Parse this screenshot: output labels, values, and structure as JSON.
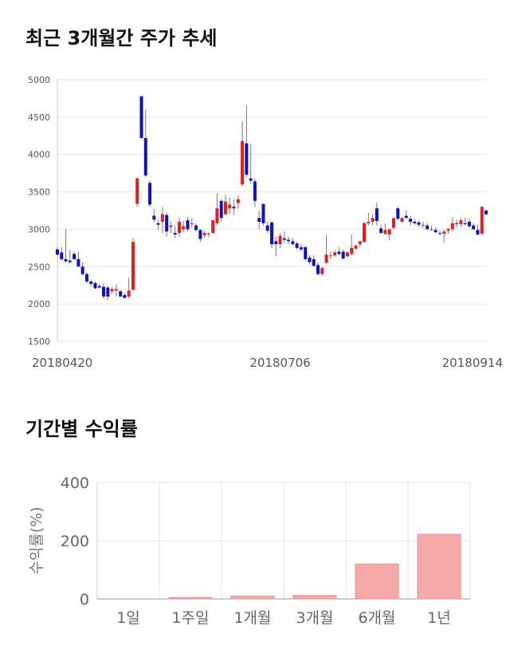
{
  "sections": {
    "price_title": "최근 3개월간 주가 추세",
    "returns_title": "기간별 수익률"
  },
  "colors": {
    "up": "#e02020",
    "down": "#1010c8",
    "wick": "#777777",
    "bar": "#f7a9a9",
    "bar_stroke": "#e89090"
  },
  "chart_data": [
    {
      "type": "candlestick",
      "title": "최근 3개월간 주가 추세",
      "ylim": [
        1500,
        5000
      ],
      "yticks": [
        1500,
        2000,
        2500,
        3000,
        3500,
        4000,
        4500,
        5000
      ],
      "xticks": [
        {
          "index": 0,
          "label": "20180420"
        },
        {
          "index": 53,
          "label": "20180706"
        },
        {
          "index": 109,
          "label": "20180914"
        }
      ],
      "candles": [
        [
          2730,
          2760,
          2650,
          2660
        ],
        [
          2690,
          2760,
          2580,
          2600
        ],
        [
          2600,
          3000,
          2560,
          2570
        ],
        [
          2580,
          2720,
          2540,
          2560
        ],
        [
          2670,
          2700,
          2600,
          2600
        ],
        [
          2600,
          2700,
          2500,
          2500
        ],
        [
          2500,
          2560,
          2380,
          2400
        ],
        [
          2400,
          2420,
          2280,
          2300
        ],
        [
          2300,
          2330,
          2240,
          2270
        ],
        [
          2280,
          2300,
          2200,
          2210
        ],
        [
          2240,
          2270,
          2210,
          2220
        ],
        [
          2230,
          2270,
          2070,
          2100
        ],
        [
          2220,
          2240,
          2050,
          2100
        ],
        [
          2170,
          2230,
          2130,
          2200
        ],
        [
          2180,
          2260,
          2100,
          2200
        ],
        [
          2170,
          2190,
          2100,
          2100
        ],
        [
          2120,
          2140,
          2080,
          2080
        ],
        [
          2100,
          2350,
          2070,
          2180
        ],
        [
          2190,
          2880,
          2180,
          2830
        ],
        [
          3340,
          3690,
          3300,
          3680
        ],
        [
          4780,
          4780,
          4220,
          4220
        ],
        [
          4220,
          4600,
          3700,
          3720
        ],
        [
          3620,
          3650,
          3300,
          3330
        ],
        [
          3180,
          3270,
          3100,
          3130
        ],
        [
          3080,
          3130,
          2990,
          3060
        ],
        [
          3100,
          3300,
          2950,
          3200
        ],
        [
          3190,
          3220,
          2900,
          2970
        ],
        [
          3030,
          3100,
          2950,
          3050
        ],
        [
          2950,
          3050,
          2880,
          2930
        ],
        [
          2950,
          3150,
          2900,
          3100
        ],
        [
          3000,
          3110,
          2960,
          3040
        ],
        [
          3120,
          3160,
          2970,
          3000
        ],
        [
          3070,
          3150,
          3020,
          3080
        ],
        [
          3050,
          3080,
          2970,
          2990
        ],
        [
          2990,
          3000,
          2830,
          2870
        ],
        [
          2920,
          2980,
          2880,
          2950
        ],
        [
          2930,
          2960,
          2890,
          2940
        ],
        [
          2950,
          3120,
          2940,
          3120
        ],
        [
          3080,
          3480,
          3050,
          3280
        ],
        [
          3380,
          3400,
          3100,
          3150
        ],
        [
          3200,
          3460,
          3180,
          3370
        ],
        [
          3280,
          3420,
          3200,
          3330
        ],
        [
          3300,
          3400,
          3200,
          3280
        ],
        [
          3350,
          3450,
          3280,
          3400
        ],
        [
          3600,
          4450,
          3580,
          4180
        ],
        [
          4150,
          4660,
          3700,
          3730
        ],
        [
          3680,
          4140,
          3610,
          3650
        ],
        [
          3640,
          3680,
          3300,
          3380
        ],
        [
          3150,
          3250,
          3000,
          3100
        ],
        [
          3340,
          3340,
          3050,
          3080
        ],
        [
          3050,
          3100,
          2950,
          2980
        ],
        [
          3090,
          3100,
          2750,
          2800
        ],
        [
          2840,
          2900,
          2640,
          2800
        ],
        [
          2800,
          2950,
          2750,
          2910
        ],
        [
          2880,
          2970,
          2820,
          2860
        ],
        [
          2860,
          2900,
          2800,
          2840
        ],
        [
          2840,
          2880,
          2780,
          2800
        ],
        [
          2810,
          2830,
          2730,
          2750
        ],
        [
          2760,
          2800,
          2700,
          2730
        ],
        [
          2760,
          2770,
          2580,
          2600
        ],
        [
          2620,
          2650,
          2540,
          2560
        ],
        [
          2600,
          2650,
          2500,
          2510
        ],
        [
          2520,
          2560,
          2380,
          2400
        ],
        [
          2400,
          2500,
          2380,
          2480
        ],
        [
          2550,
          2920,
          2540,
          2660
        ],
        [
          2640,
          2700,
          2600,
          2650
        ],
        [
          2650,
          2720,
          2630,
          2690
        ],
        [
          2700,
          2760,
          2650,
          2670
        ],
        [
          2700,
          2730,
          2590,
          2610
        ],
        [
          2640,
          2700,
          2630,
          2690
        ],
        [
          2670,
          2930,
          2650,
          2750
        ],
        [
          2740,
          2800,
          2730,
          2780
        ],
        [
          2800,
          2840,
          2760,
          2840
        ],
        [
          2830,
          3100,
          2820,
          3080
        ],
        [
          3080,
          3220,
          3050,
          3100
        ],
        [
          3100,
          3200,
          3050,
          3150
        ],
        [
          3280,
          3360,
          3050,
          3110
        ],
        [
          3010,
          3060,
          2940,
          2950
        ],
        [
          2940,
          3080,
          2930,
          2990
        ],
        [
          2930,
          3000,
          2850,
          3000
        ],
        [
          3020,
          3150,
          3000,
          3150
        ],
        [
          3280,
          3300,
          3120,
          3140
        ],
        [
          3100,
          3160,
          3090,
          3150
        ],
        [
          3180,
          3250,
          3150,
          3150
        ],
        [
          3140,
          3180,
          3050,
          3100
        ],
        [
          3100,
          3130,
          3060,
          3080
        ],
        [
          3090,
          3120,
          3030,
          3060
        ],
        [
          3060,
          3100,
          3020,
          3060
        ],
        [
          3050,
          3080,
          3000,
          3000
        ],
        [
          3000,
          3050,
          2980,
          3000
        ],
        [
          2990,
          3030,
          2950,
          2960
        ],
        [
          2950,
          2980,
          2920,
          2940
        ],
        [
          2940,
          2990,
          2820,
          2970
        ],
        [
          2980,
          3020,
          2940,
          3000
        ],
        [
          3000,
          3160,
          2980,
          3080
        ],
        [
          3080,
          3130,
          3020,
          3070
        ],
        [
          3070,
          3150,
          3030,
          3120
        ],
        [
          3080,
          3150,
          3050,
          3070
        ],
        [
          3100,
          3140,
          3020,
          3040
        ],
        [
          3050,
          3080,
          2990,
          3000
        ],
        [
          2990,
          3060,
          2920,
          2930
        ],
        [
          2940,
          3310,
          2930,
          3300
        ],
        [
          3250,
          3260,
          3190,
          3200
        ]
      ]
    },
    {
      "type": "bar",
      "title": "기간별 수익률",
      "ylabel": "수익률(%)",
      "categories": [
        "1일",
        "1주일",
        "1개월",
        "3개월",
        "6개월",
        "1년"
      ],
      "values": [
        0,
        5,
        10,
        12,
        120,
        222
      ],
      "ylim": [
        0,
        400
      ],
      "yticks": [
        0,
        200,
        400
      ]
    }
  ]
}
